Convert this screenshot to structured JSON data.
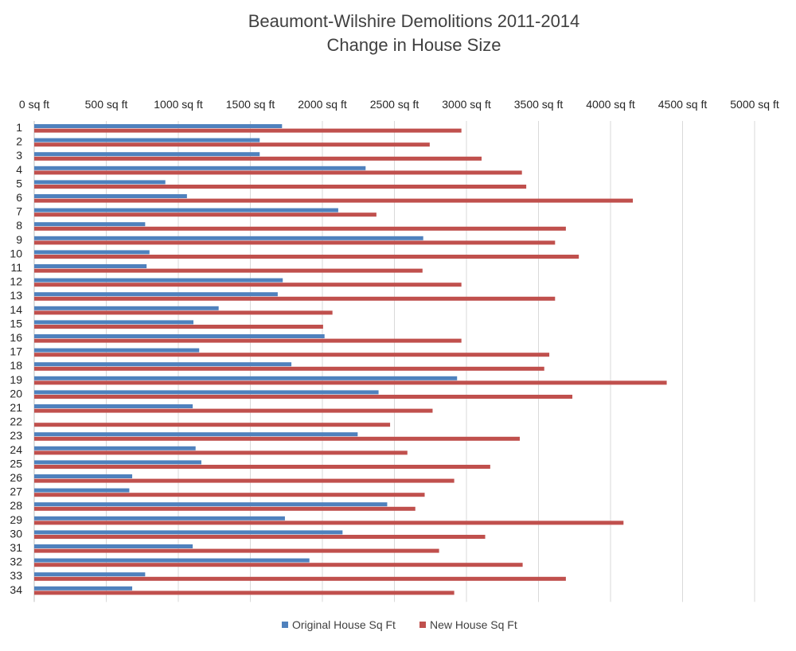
{
  "chart_data": {
    "type": "bar",
    "orientation": "horizontal",
    "title": [
      "Beaumont-Wilshire Demolitions 2011-2014",
      "Change in House Size"
    ],
    "xaxis": {
      "position": "top",
      "min": 0,
      "max": 5000,
      "step": 500,
      "tick_labels": [
        "0 sq ft",
        "500 sq ft",
        "1000 sq ft",
        "1500 sq ft",
        "2000 sq ft",
        "2500 sq ft",
        "3000 sq ft",
        "3500 sq ft",
        "4000 sq ft",
        "4500 sq ft",
        "5000 sq ft"
      ]
    },
    "grid": true,
    "legend_position": "bottom",
    "categories": [
      "1",
      "2",
      "3",
      "4",
      "5",
      "6",
      "7",
      "8",
      "9",
      "10",
      "11",
      "12",
      "13",
      "14",
      "15",
      "16",
      "17",
      "18",
      "19",
      "20",
      "21",
      "22",
      "23",
      "24",
      "25",
      "26",
      "27",
      "28",
      "29",
      "30",
      "31",
      "32",
      "33",
      "34"
    ],
    "series": [
      {
        "name": "Original House Sq Ft",
        "color": "#4f81bd",
        "values": [
          1720,
          1565,
          1565,
          2300,
          910,
          1060,
          2110,
          770,
          2700,
          800,
          780,
          1725,
          1690,
          1280,
          1105,
          2015,
          1145,
          1785,
          2935,
          2390,
          1100,
          0,
          2245,
          1120,
          1160,
          680,
          660,
          2450,
          1740,
          2140,
          1100,
          1910,
          770,
          680
        ]
      },
      {
        "name": "New House Sq Ft",
        "color": "#c0504d",
        "values": [
          2965,
          2745,
          3105,
          3385,
          3415,
          4155,
          2375,
          3690,
          3615,
          3780,
          2695,
          2965,
          3615,
          2070,
          2005,
          2965,
          3575,
          3540,
          4390,
          3735,
          2765,
          2470,
          3370,
          2590,
          3165,
          2915,
          2710,
          2645,
          4090,
          3130,
          2810,
          3390,
          3690,
          2915
        ]
      }
    ]
  }
}
